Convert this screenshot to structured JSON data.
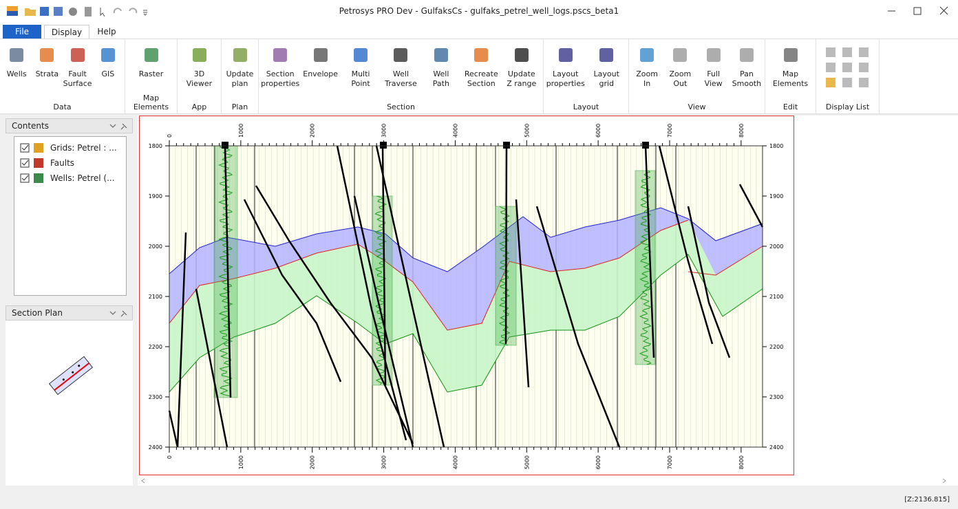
{
  "window": {
    "title": "Petrosys PRO Dev - GulfaksCs - gulfaks_petrel_well_logs.pscs_beta1",
    "status": "[Z:2136.815]"
  },
  "menu": [
    "File",
    "Display",
    "Help"
  ],
  "ribbon": {
    "groups": [
      {
        "label": "Data",
        "buttons": [
          "Wells",
          "Strata",
          "Fault\nSurface",
          "GIS"
        ]
      },
      {
        "label": "Map Elements",
        "buttons": [
          "Raster"
        ]
      },
      {
        "label": "App",
        "buttons": [
          "3D Viewer"
        ]
      },
      {
        "label": "Plan",
        "buttons": [
          "Update\nplan"
        ]
      },
      {
        "label": "Section",
        "buttons": [
          "Section\nproperties",
          "Envelope",
          "Multi\nPoint",
          "Well\nTraverse",
          "Well\nPath",
          "Recreate\nSection",
          "Update\nZ range"
        ]
      },
      {
        "label": "Layout",
        "buttons": [
          "Layout\nproperties",
          "Layout\ngrid"
        ]
      },
      {
        "label": "View",
        "buttons": [
          "Zoom\nIn",
          "Zoom\nOut",
          "Full\nView",
          "Pan\nSmooth"
        ]
      },
      {
        "label": "Edit",
        "buttons": [
          "Map\nElements"
        ]
      },
      {
        "label": "Display List",
        "buttons": []
      }
    ]
  },
  "contents": {
    "title": "Contents",
    "items": [
      "Grids: Petrel : ...",
      "Faults",
      "Wells: Petrel (..."
    ]
  },
  "section_plan": {
    "title": "Section Plan"
  },
  "section": {
    "xticks": [
      0,
      1000,
      2000,
      3000,
      4000,
      5000,
      6000,
      7000,
      8000
    ],
    "yticks": [
      1800,
      1900,
      2000,
      2100,
      2200,
      2300,
      2400
    ]
  }
}
